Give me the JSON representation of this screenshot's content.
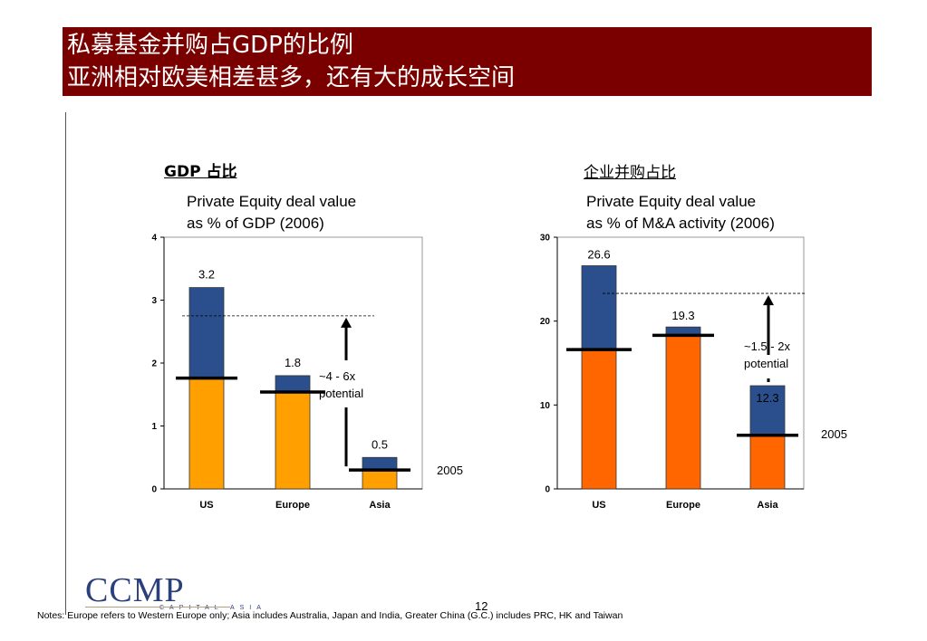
{
  "header": {
    "title_line1": "私募基金并购占GDP的比例",
    "title_line2": "亚洲相对欧美相差甚多，还有大的成长空间"
  },
  "colors": {
    "title_bg": "#7a0000",
    "navy": "#2b4f8c",
    "amber": "#ff9f00",
    "orange": "#ff6600",
    "marker": "#000000"
  },
  "left_chart": {
    "heading": "GDP 占比",
    "subtitle_line1": "Private Equity deal value",
    "subtitle_line2": "as % of GDP (2006)",
    "annotation_line1": "~4 - 6x",
    "annotation_line2": "potential",
    "marker_label": "2005"
  },
  "right_chart": {
    "heading": "企业并购占比",
    "subtitle_line1": "Private Equity deal value",
    "subtitle_line2": "as % of M&A activity (2006)",
    "annotation_line1": "~1.5 - 2x",
    "annotation_line2": "potential",
    "marker_label": "2005"
  },
  "chart_data": [
    {
      "type": "bar",
      "categories": [
        "US",
        "Europe",
        "Asia"
      ],
      "values": [
        3.2,
        1.8,
        0.5
      ],
      "data_labels": [
        "3.2",
        "1.8",
        "0.5"
      ],
      "values_2005": [
        1.76,
        1.54,
        0.3
      ],
      "target_line": 2.75,
      "ylim": [
        0,
        4
      ],
      "yticks": [
        0,
        1,
        2,
        3,
        4
      ],
      "bottom_color": "amber",
      "top_color": "navy"
    },
    {
      "type": "bar",
      "categories": [
        "US",
        "Europe",
        "Asia"
      ],
      "values": [
        26.6,
        19.3,
        12.3
      ],
      "data_labels": [
        "26.6",
        "19.3",
        "12.3"
      ],
      "values_2005": [
        16.6,
        18.3,
        6.4
      ],
      "target_line": 23.3,
      "ylim": [
        0,
        30
      ],
      "yticks": [
        0,
        10,
        20,
        30
      ],
      "bottom_color": "orange",
      "top_color": "navy"
    }
  ],
  "footer": {
    "logo_text": "CCMP",
    "logo_subtext": "CAPITAL ASIA",
    "page_number": "12",
    "notes": "Notes: Europe refers to Western Europe only; Asia includes Australia, Japan and India, Greater China (G.C.) includes PRC, HK and Taiwan"
  }
}
